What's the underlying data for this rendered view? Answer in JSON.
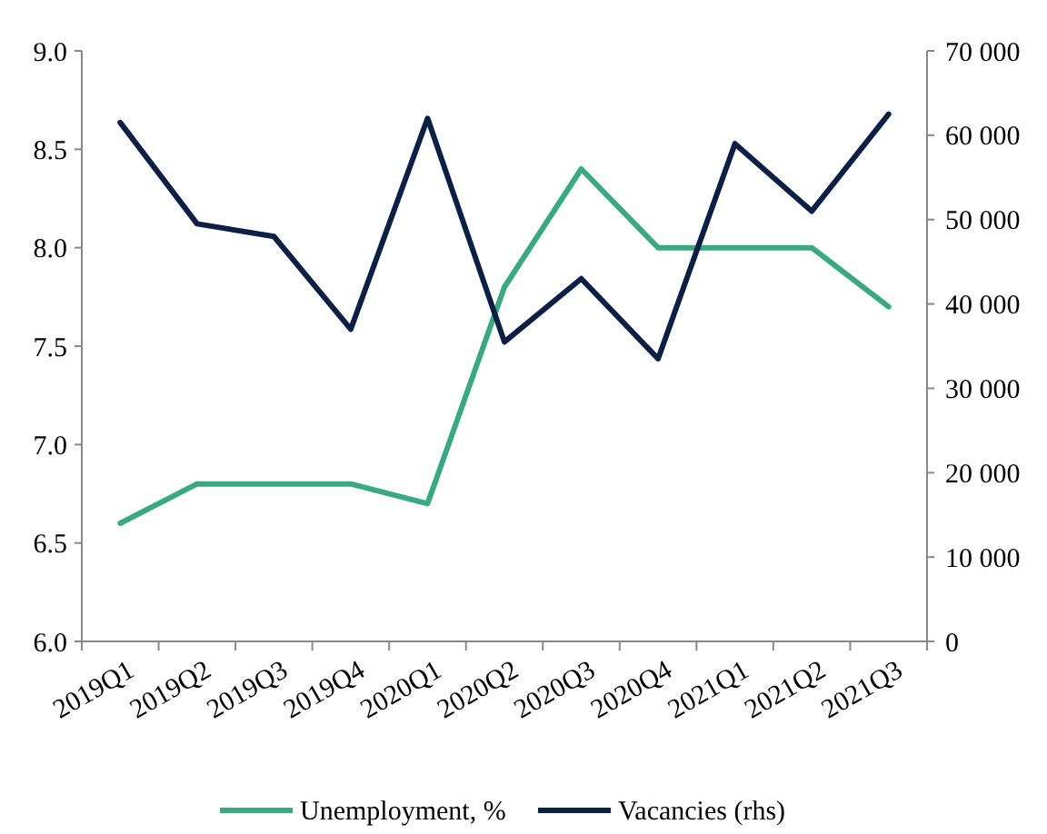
{
  "chart_data": {
    "type": "line",
    "categories": [
      "2019Q1",
      "2019Q2",
      "2019Q3",
      "2019Q4",
      "2020Q1",
      "2020Q2",
      "2020Q3",
      "2020Q4",
      "2021Q1",
      "2021Q2",
      "2021Q3"
    ],
    "series": [
      {
        "name": "Unemployment, %",
        "color": "#3aa882",
        "values": [
          6.6,
          6.8,
          6.8,
          6.8,
          6.7,
          7.8,
          8.4,
          8.0,
          8.0,
          8.0,
          7.7
        ]
      },
      {
        "name": "Vacancies (rhs)",
        "color": "#0c1f45",
        "axis": "y2",
        "values": [
          61500,
          49500,
          48000,
          37000,
          62000,
          35500,
          43000,
          33500,
          59000,
          51000,
          62500
        ]
      }
    ],
    "ylim": [
      6.0,
      9.0
    ],
    "yticks": [
      {
        "value": 6,
        "label": "6.0"
      },
      {
        "value": 6.5,
        "label": "6.5"
      },
      {
        "value": 7,
        "label": "7.0"
      },
      {
        "value": 7.5,
        "label": "7.5"
      },
      {
        "value": 8,
        "label": "8.0"
      },
      {
        "value": 8.5,
        "label": "8.5"
      },
      {
        "value": 9,
        "label": "9.0"
      }
    ],
    "y2lim": [
      0,
      70000
    ],
    "y2ticks": [
      {
        "value": 0,
        "label": "0"
      },
      {
        "value": 10000,
        "label": "10 000"
      },
      {
        "value": 20000,
        "label": "20 000"
      },
      {
        "value": 30000,
        "label": "30 000"
      },
      {
        "value": 40000,
        "label": "40 000"
      },
      {
        "value": 50000,
        "label": "50 000"
      },
      {
        "value": 60000,
        "label": "60 000"
      },
      {
        "value": 70000,
        "label": "70 000"
      }
    ],
    "legend": "bottom",
    "grid": false
  }
}
